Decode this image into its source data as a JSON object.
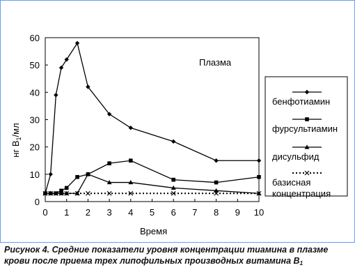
{
  "chart_data": {
    "type": "line",
    "annotation": "Плазма",
    "ylabel": "нг B1/мл",
    "xlabel": "Время",
    "xlim": [
      0,
      10
    ],
    "ylim": [
      0,
      60
    ],
    "xticks": [
      0,
      1,
      2,
      3,
      4,
      5,
      6,
      7,
      8,
      9,
      10
    ],
    "yticks": [
      0,
      10,
      20,
      30,
      40,
      50,
      60
    ],
    "grid": false,
    "legend_position": "right",
    "series": [
      {
        "name": "бенфотиамин",
        "marker": "diamond",
        "dash": "solid",
        "color": "#000000",
        "x": [
          0,
          0.25,
          0.5,
          0.75,
          1,
          1.5,
          2,
          3,
          4,
          6,
          8,
          10
        ],
        "y": [
          3,
          10,
          39,
          49,
          52,
          58,
          42,
          32,
          27,
          22,
          15,
          15
        ]
      },
      {
        "name": "фурсультиамин",
        "marker": "square",
        "dash": "solid",
        "color": "#000000",
        "x": [
          0,
          0.25,
          0.5,
          0.75,
          1,
          1.5,
          2,
          3,
          4,
          6,
          8,
          10
        ],
        "y": [
          3,
          3,
          3,
          4,
          5,
          9,
          10,
          14,
          15,
          8,
          7,
          9
        ]
      },
      {
        "name": "дисульфид",
        "marker": "triangle",
        "dash": "solid",
        "color": "#000000",
        "x": [
          0,
          0.25,
          0.5,
          0.75,
          1,
          1.5,
          2,
          3,
          4,
          6,
          8,
          10
        ],
        "y": [
          3,
          3,
          3,
          3,
          3,
          3,
          10,
          7,
          7,
          5,
          4,
          3
        ]
      },
      {
        "name": "базисная концентрация",
        "marker": "x",
        "dash": "dotted",
        "color": "#000000",
        "x": [
          0,
          0.25,
          0.5,
          0.75,
          1,
          1.5,
          2,
          3,
          4,
          6,
          8,
          10
        ],
        "y": [
          3,
          3,
          3,
          3,
          3,
          3,
          3,
          3,
          3,
          3,
          3,
          3
        ]
      }
    ]
  },
  "legend": {
    "items": [
      {
        "lines": [
          "бенфотиамин"
        ]
      },
      {
        "lines": [
          "фурсультиамин"
        ]
      },
      {
        "lines": [
          "дисульфид"
        ]
      },
      {
        "lines": [
          "базисная",
          "концентрация"
        ]
      }
    ]
  },
  "caption": {
    "text": "Рисунок 4. Средние показатели уровня концентрации тиамина в плазме крови после приема трех липофильных производных витамина B",
    "subscript": "1"
  }
}
